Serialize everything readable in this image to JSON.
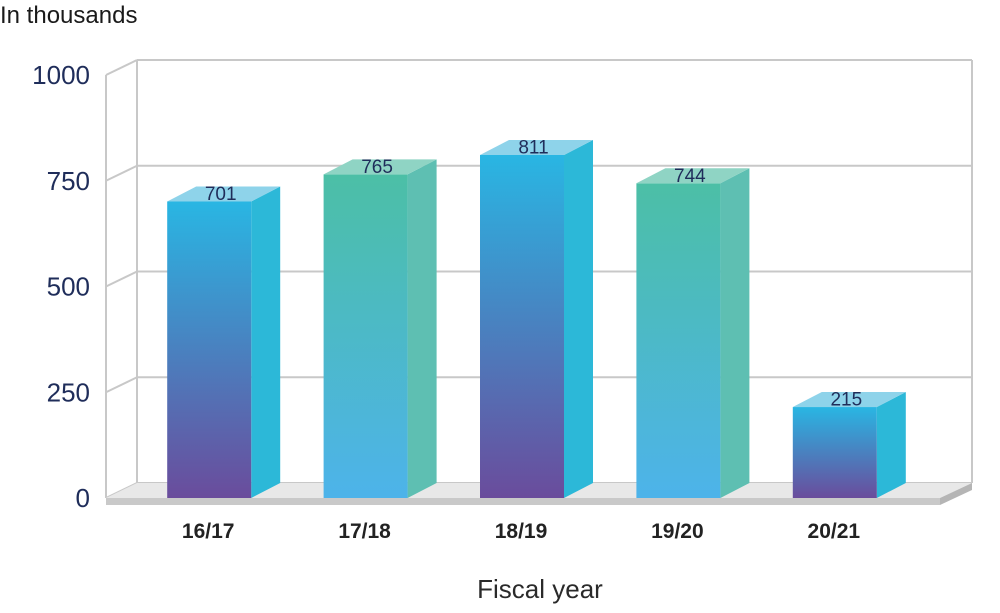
{
  "chart_data": {
    "type": "bar",
    "categories": [
      "16/17",
      "17/18",
      "18/19",
      "19/20",
      "20/21"
    ],
    "values": [
      701,
      765,
      811,
      744,
      215
    ],
    "title": "",
    "ylabel": "In thousands",
    "xlabel": "Fiscal year",
    "ylim": [
      0,
      1000
    ],
    "yticks": [
      0,
      250,
      500,
      750,
      1000
    ],
    "grid": true,
    "bar_styles": [
      "purple-blue",
      "teal",
      "purple-blue",
      "teal",
      "purple-blue"
    ],
    "colors": {
      "purple_bottom": "#6a4c9c",
      "blue_top": "#29b6e3",
      "teal_top": "#4cbfa6",
      "lightblue_bottom": "#4db3ea",
      "gridline": "#c8c8c8",
      "floor": "#c9c9c9"
    }
  }
}
